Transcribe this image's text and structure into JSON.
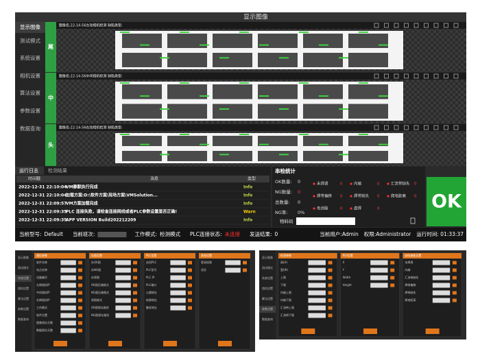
{
  "sidebar": [
    "显示图像",
    "测试模式",
    "系统设置",
    "相机设置",
    "算法设置",
    "参数设置",
    "数据查询"
  ],
  "header": {
    "title": "显示图像"
  },
  "panels": [
    {
      "tag": "尾",
      "caption": "图像名:22-14-56左动相机检测   缺陷类型:"
    },
    {
      "tag": "中",
      "caption": "图像名:22-14-56中间相机检测   缺陷类型:"
    },
    {
      "tag": "头",
      "caption": "图像名:22-14-56右动相机检测   缺陷类型:"
    }
  ],
  "log": {
    "tabs": [
      "运行日志",
      "检测结果"
    ],
    "columns": [
      "时间戳",
      "消息",
      "类型"
    ],
    "rows": [
      [
        "2022-12-31 22:10:04",
        "VM静默执行完成",
        "Info"
      ],
      [
        "2022-12-31 22:10:04",
        "加载方案:D:\\软件方案\\现场方案\\VMSolution...",
        "Info"
      ],
      [
        "2022-12-31 22:09:57",
        "VM方案加载完成",
        "Info"
      ],
      [
        "2022-12-31 22:09:35",
        "PLC 连接失败，请检查连接网线或者PLC参数设置是否正确!",
        "Warn"
      ],
      [
        "2022-12-31 22:09:35",
        "APP VERSION Build202212209",
        "Info"
      ]
    ]
  },
  "stats": {
    "title": "串检统计",
    "counts": [
      {
        "label": "OK数量:",
        "value": 0
      },
      {
        "label": "NG数量:",
        "value": 0
      },
      {
        "label": "总数量:",
        "value": 0
      },
      {
        "label": "NG率:",
        "value": "0%"
      }
    ],
    "defects": [
      {
        "label": "未焊透",
        "value": 0
      },
      {
        "label": "内缩",
        "value": 0
      },
      {
        "label": "汇流带缺失",
        "value": 0
      },
      {
        "label": "焊带偏移",
        "value": 0
      },
      {
        "label": "焊带缺失",
        "value": 0
      },
      {
        "label": "爬电距离",
        "value": 0
      },
      {
        "label": "电池破",
        "value": 0
      },
      {
        "label": "虚焊",
        "value": 0
      }
    ],
    "material_label": "物料码"
  },
  "result": "OK",
  "status": {
    "left": [
      {
        "label": "当前型号:",
        "value": "Default"
      },
      {
        "label": "当前班次:",
        "value": null
      },
      {
        "label": "工作模式:",
        "value": "检测模式"
      },
      {
        "label": "PLC连接状态:",
        "value": "未连接"
      },
      {
        "label": "发送结果:",
        "value": "0"
      }
    ],
    "right": [
      "当前用户:Admin",
      "权限:Administrator",
      "运行时间: 01:33:37"
    ]
  },
  "shots": [
    {
      "sections": [
        {
          "title": "通信参数",
          "fields": [
            "软件名称",
            "站点名称",
            "设备编号",
            "左侧相机IP",
            "中间相机IP",
            "右侧相机IP",
            "工作模式",
            "软件位置",
            "图像保存天数",
            "数据保存天数"
          ]
        },
        {
          "title": "存图设置",
          "fields": [
            "存OK图",
            "存NG图",
            "存原图",
            "OK图压缩格式",
            "NG图压缩格式",
            "原图格式",
            "OK图保存路径",
            "NG图保存路径"
          ]
        },
        {
          "title": "PLC设置",
          "fields": [
            "启用PLC",
            "PLC型号",
            "PLC IP",
            "PLC端口",
            "心跳地址",
            "结果地址",
            "触发地址"
          ]
        },
        {
          "title": "其他设置",
          "fields": [
            "登录权限",
            "语言"
          ]
        }
      ]
    },
    {
      "sections": [
        {
          "title": "检测参数",
          "fields": [
            "高(H)",
            "宽(W)",
            "上限",
            "下限",
            "内缩上限",
            "内缩下限",
            "汇流带上限",
            "汇流带下限"
          ]
        },
        {
          "title": "ROI设置",
          "fields": [
            "X",
            "Y",
            "Width",
            "Height"
          ]
        },
        {
          "title": "缺陷使能设置",
          "fields": [
            "未焊透",
            "内缩",
            "汇流带缺失",
            "焊带偏移",
            "焊带缺失",
            "爬电距离"
          ]
        }
      ]
    }
  ]
}
